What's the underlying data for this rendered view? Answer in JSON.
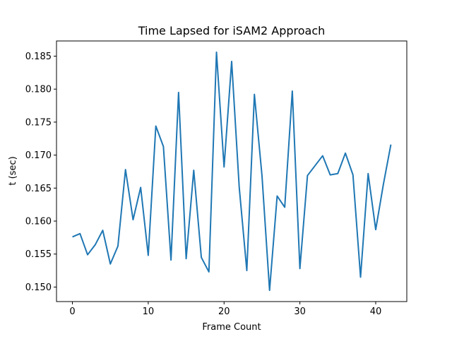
{
  "chart_data": {
    "type": "line",
    "title": "Time Lapsed for iSAM2 Approach",
    "xlabel": "Frame Count",
    "ylabel": "t (sec)",
    "xlim": [
      -2.1,
      44.1
    ],
    "ylim": [
      0.1478,
      0.1873
    ],
    "xticks": [
      0,
      10,
      20,
      30,
      40
    ],
    "yticks": [
      0.15,
      0.155,
      0.16,
      0.165,
      0.17,
      0.175,
      0.18,
      0.185
    ],
    "ytick_labels": [
      "0.150",
      "0.155",
      "0.160",
      "0.165",
      "0.170",
      "0.175",
      "0.180",
      "0.185"
    ],
    "grid": false,
    "series": [
      {
        "color": "#1f77b4",
        "x": [
          0,
          1,
          2,
          3,
          4,
          5,
          6,
          7,
          8,
          9,
          10,
          11,
          12,
          13,
          14,
          15,
          16,
          17,
          18,
          19,
          20,
          21,
          22,
          23,
          24,
          25,
          26,
          27,
          28,
          29,
          30,
          31,
          32,
          33,
          34,
          35,
          36,
          37,
          38,
          39,
          40,
          41,
          42
        ],
        "values": [
          0.1576,
          0.1581,
          0.1549,
          0.1564,
          0.1586,
          0.1535,
          0.1562,
          0.1678,
          0.1602,
          0.1651,
          0.1548,
          0.1744,
          0.1713,
          0.1541,
          0.1795,
          0.1543,
          0.1677,
          0.1545,
          0.1523,
          0.1856,
          0.1682,
          0.1842,
          0.1651,
          0.1525,
          0.1792,
          0.1669,
          0.1495,
          0.1638,
          0.1621,
          0.1797,
          0.1528,
          0.1669,
          0.1684,
          0.1699,
          0.167,
          0.1672,
          0.1703,
          0.167,
          0.1515,
          0.1672,
          0.1587,
          0.1655,
          0.1716
        ]
      }
    ]
  }
}
